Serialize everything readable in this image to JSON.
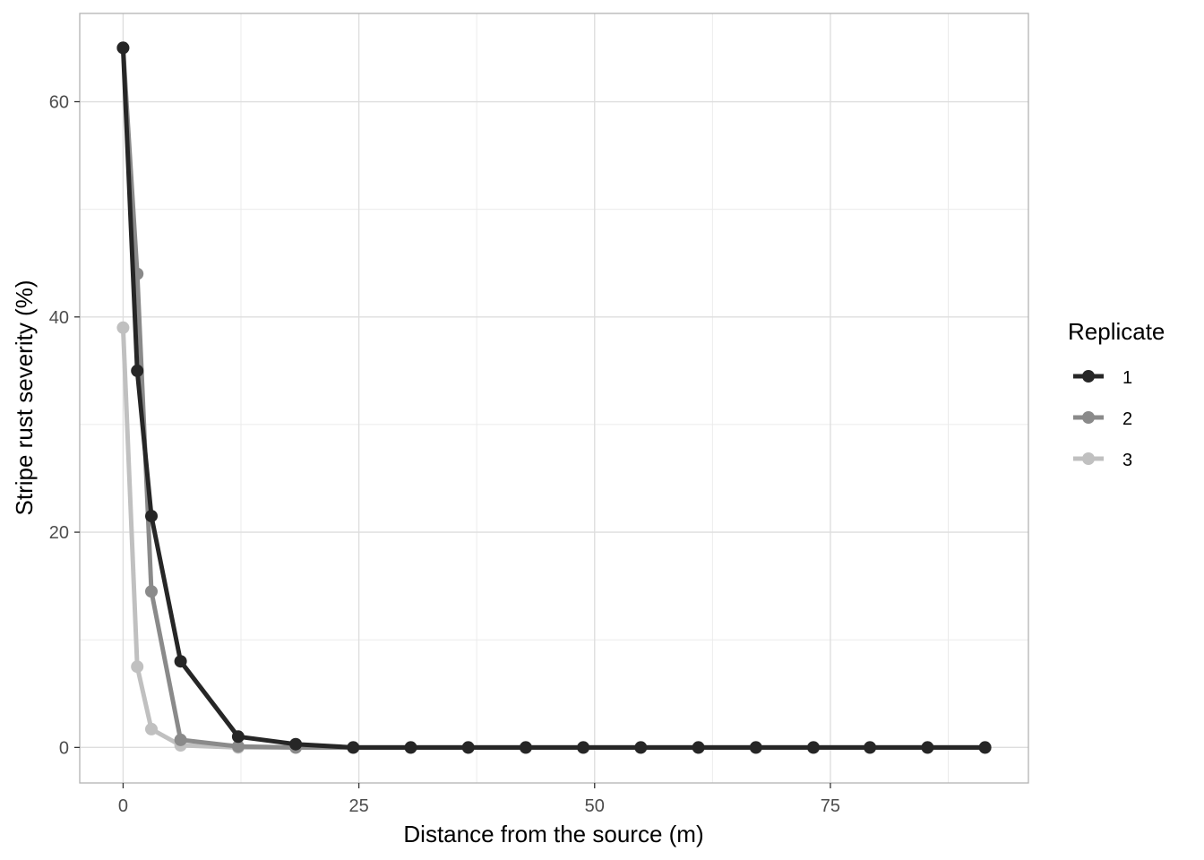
{
  "chart_data": {
    "type": "line",
    "xlabel": "Distance from the source (m)",
    "ylabel": "Stripe rust severity (%)",
    "xlim": [
      -4.6,
      96.0
    ],
    "ylim": [
      -3.3,
      68.2
    ],
    "x_ticks": [
      0,
      25,
      50,
      75
    ],
    "x_tick_labels": [
      "0",
      "25",
      "50",
      "75"
    ],
    "y_ticks": [
      0,
      20,
      40,
      60
    ],
    "y_tick_labels": [
      "0",
      "20",
      "40",
      "60"
    ],
    "grid": true,
    "legend": {
      "title": "Replicate",
      "position": "right"
    },
    "series": [
      {
        "name": "1",
        "color": "#262626",
        "x": [
          0,
          1.5,
          3.0,
          6.1,
          12.2,
          18.3,
          24.4,
          30.5,
          36.6,
          42.7,
          48.8,
          54.9,
          61.0,
          67.1,
          73.2,
          79.2,
          85.3,
          91.4
        ],
        "y": [
          65,
          35,
          21.5,
          8,
          1,
          0.3,
          0,
          0,
          0,
          0,
          0,
          0,
          0,
          0,
          0,
          0,
          0,
          0
        ]
      },
      {
        "name": "2",
        "color": "#8a8a8a",
        "x": [
          0,
          1.5,
          3.0,
          6.1,
          12.2,
          18.3,
          24.4,
          30.5,
          36.6,
          42.7,
          48.8,
          54.9,
          61.0,
          67.1,
          73.2,
          79.2,
          85.3,
          91.4
        ],
        "y": [
          65,
          44,
          14.5,
          0.7,
          0.1,
          0,
          0,
          0,
          0,
          0,
          0,
          0,
          0,
          0,
          0,
          0,
          0,
          0
        ]
      },
      {
        "name": "3",
        "color": "#c0c0c0",
        "x": [
          0,
          1.5,
          3.0,
          6.1,
          12.2,
          18.3,
          24.4,
          30.5,
          36.6,
          42.7,
          48.8,
          54.9,
          61.0,
          67.1,
          73.2,
          79.2,
          85.3,
          91.4
        ],
        "y": [
          39,
          7.5,
          1.7,
          0.2,
          0,
          0,
          0,
          0,
          0,
          0,
          0,
          0,
          0,
          0,
          0,
          0,
          0,
          0
        ]
      }
    ]
  }
}
